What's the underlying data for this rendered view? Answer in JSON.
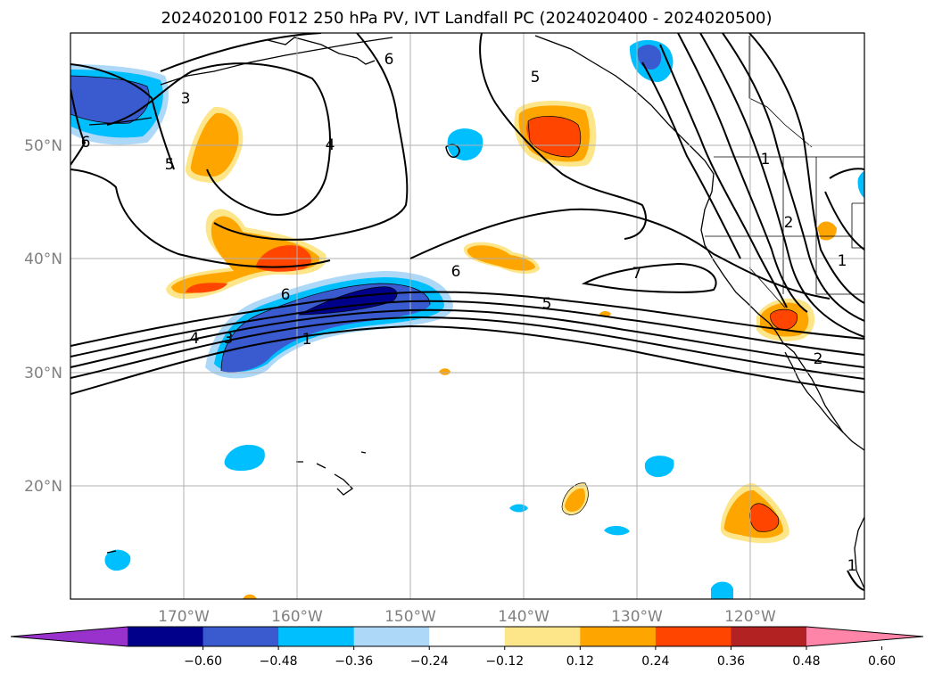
{
  "title": "2024020100 F012 250 hPa PV, IVT Landfall PC (2024020400 - 2024020500)",
  "map": {
    "lon_range": [
      -180,
      -110
    ],
    "lat_range": [
      10,
      60
    ],
    "lat_ticks": [
      "50°N",
      "40°N",
      "30°N",
      "20°N"
    ],
    "lon_ticks": [
      "170°W",
      "160°W",
      "150°W",
      "140°W",
      "130°W",
      "120°W"
    ],
    "gridlines": true,
    "contour_labels": [
      "6",
      "3",
      "5",
      "4",
      "6",
      "5",
      "4",
      "3",
      "1",
      "6",
      "6",
      "5",
      "7",
      "2",
      "2",
      "1",
      "1",
      "1"
    ]
  },
  "colorbar": {
    "orientation": "horizontal",
    "extend": "both",
    "colors": [
      "#9932cc",
      "#00008b",
      "#3a5bcf",
      "#00bfff",
      "#add8f7",
      "#ffffff",
      "#fde68a",
      "#ffa500",
      "#ff4500",
      "#b22222",
      "#ff85a8"
    ],
    "tick_labels": [
      "−0.60",
      "−0.48",
      "−0.36",
      "−0.24",
      "−0.12",
      "0.12",
      "0.24",
      "0.36",
      "0.48",
      "0.60"
    ]
  }
}
